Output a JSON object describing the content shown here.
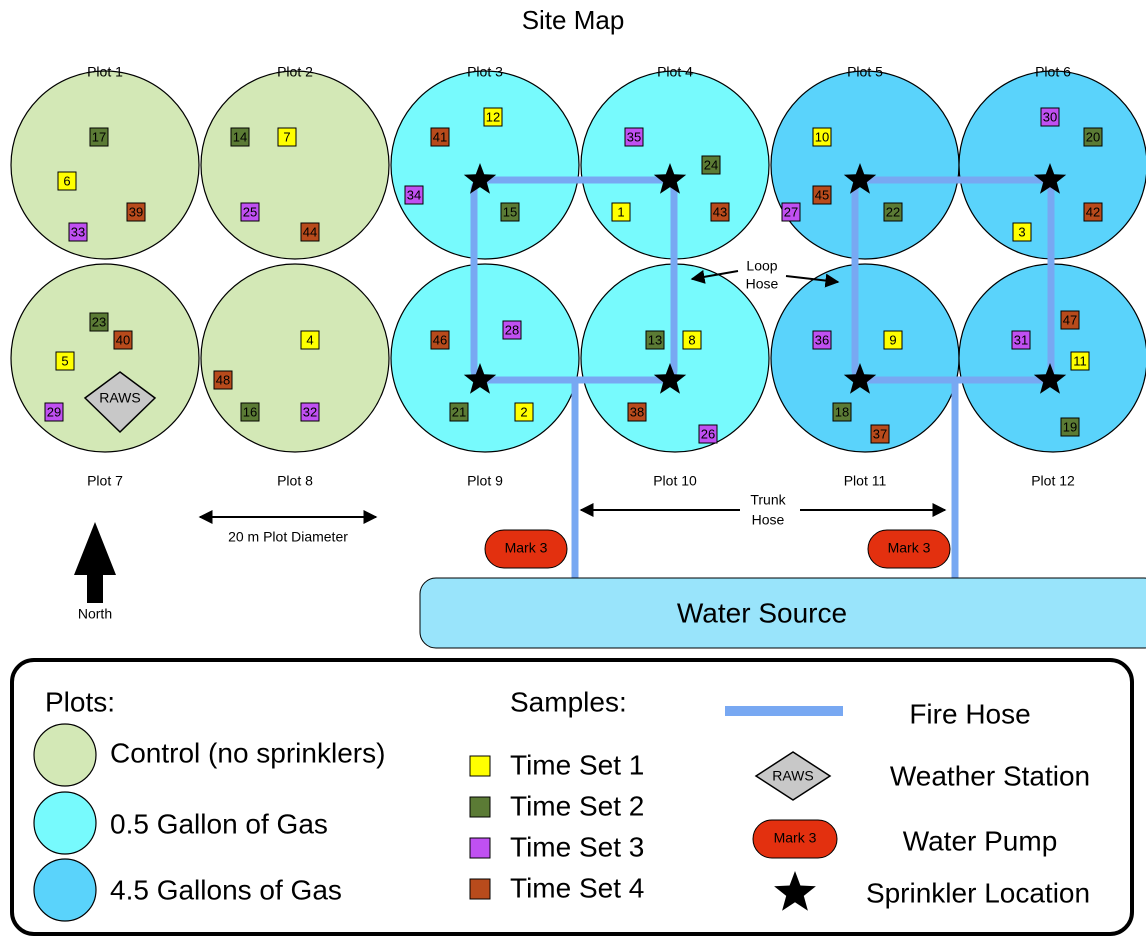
{
  "title": "Site Map",
  "legend": {
    "plots_heading": "Plots:",
    "plots": [
      {
        "label": "Control (no sprinklers)",
        "color": "#d3e8b6"
      },
      {
        "label": "0.5 Gallon of Gas",
        "color": "#77fafd"
      },
      {
        "label": "4.5 Gallons of Gas",
        "color": "#5ad3fb"
      }
    ],
    "samples_heading": "Samples:",
    "samples": [
      {
        "label": "Time Set 1",
        "color": "#ffff00"
      },
      {
        "label": "Time Set 2",
        "color": "#5b7b35"
      },
      {
        "label": "Time Set 3",
        "color": "#c050f2"
      },
      {
        "label": "Time Set 4",
        "color": "#b84b1c"
      }
    ],
    "fire_hose": "Fire Hose",
    "raws": "RAWS",
    "weather_station": "Weather Station",
    "pump": "Mark 3",
    "water_pump": "Water Pump",
    "sprinkler": "Sprinkler Location"
  },
  "plots": [
    {
      "label": "Plot 1",
      "treatment": 0,
      "samples": [
        {
          "label": "17",
          "set": 2
        },
        {
          "label": "6",
          "set": 1
        },
        {
          "label": "39",
          "set": 4
        },
        {
          "label": "33",
          "set": 3
        }
      ]
    },
    {
      "label": "Plot 2",
      "treatment": 0,
      "samples": [
        {
          "label": "14",
          "set": 2
        },
        {
          "label": "7",
          "set": 1
        },
        {
          "label": "25",
          "set": 3
        },
        {
          "label": "44",
          "set": 4
        }
      ]
    },
    {
      "label": "Plot 3",
      "treatment": 1,
      "samples": [
        {
          "label": "41",
          "set": 4
        },
        {
          "label": "12",
          "set": 1
        },
        {
          "label": "34",
          "set": 3
        },
        {
          "label": "15",
          "set": 2
        }
      ]
    },
    {
      "label": "Plot 4",
      "treatment": 1,
      "samples": [
        {
          "label": "35",
          "set": 3
        },
        {
          "label": "24",
          "set": 2
        },
        {
          "label": "1",
          "set": 1
        },
        {
          "label": "43",
          "set": 4
        }
      ]
    },
    {
      "label": "Plot 5",
      "treatment": 2,
      "samples": [
        {
          "label": "10",
          "set": 1
        },
        {
          "label": "45",
          "set": 4
        },
        {
          "label": "27",
          "set": 3
        },
        {
          "label": "22",
          "set": 2
        }
      ]
    },
    {
      "label": "Plot 6",
      "treatment": 2,
      "samples": [
        {
          "label": "30",
          "set": 3
        },
        {
          "label": "20",
          "set": 2
        },
        {
          "label": "42",
          "set": 4
        },
        {
          "label": "3",
          "set": 1
        }
      ]
    },
    {
      "label": "Plot 7",
      "treatment": 0,
      "samples": [
        {
          "label": "23",
          "set": 2
        },
        {
          "label": "40",
          "set": 4
        },
        {
          "label": "5",
          "set": 1
        },
        {
          "label": "29",
          "set": 3
        }
      ]
    },
    {
      "label": "Plot 8",
      "treatment": 0,
      "samples": [
        {
          "label": "4",
          "set": 1
        },
        {
          "label": "48",
          "set": 4
        },
        {
          "label": "16",
          "set": 2
        },
        {
          "label": "32",
          "set": 3
        }
      ]
    },
    {
      "label": "Plot 9",
      "treatment": 1,
      "samples": [
        {
          "label": "46",
          "set": 4
        },
        {
          "label": "28",
          "set": 3
        },
        {
          "label": "21",
          "set": 2
        },
        {
          "label": "2",
          "set": 1
        }
      ]
    },
    {
      "label": "Plot 10",
      "treatment": 1,
      "samples": [
        {
          "label": "13",
          "set": 2
        },
        {
          "label": "8",
          "set": 1
        },
        {
          "label": "38",
          "set": 4
        },
        {
          "label": "26",
          "set": 3
        }
      ]
    },
    {
      "label": "Plot 11",
      "treatment": 2,
      "samples": [
        {
          "label": "36",
          "set": 3
        },
        {
          "label": "9",
          "set": 1
        },
        {
          "label": "18",
          "set": 2
        },
        {
          "label": "37",
          "set": 4
        }
      ]
    },
    {
      "label": "Plot 12",
      "treatment": 2,
      "samples": [
        {
          "label": "31",
          "set": 3
        },
        {
          "label": "47",
          "set": 4
        },
        {
          "label": "11",
          "set": 1
        },
        {
          "label": "19",
          "set": 2
        }
      ]
    }
  ],
  "raws": "RAWS",
  "loop_hose": [
    "Loop",
    "Hose"
  ],
  "trunk_hose": [
    "Trunk",
    "Hose"
  ],
  "diameter": "20 m Plot Diameter",
  "north": "North",
  "pumps": [
    "Mark 3",
    "Mark 3"
  ],
  "water_source": "Water Source"
}
